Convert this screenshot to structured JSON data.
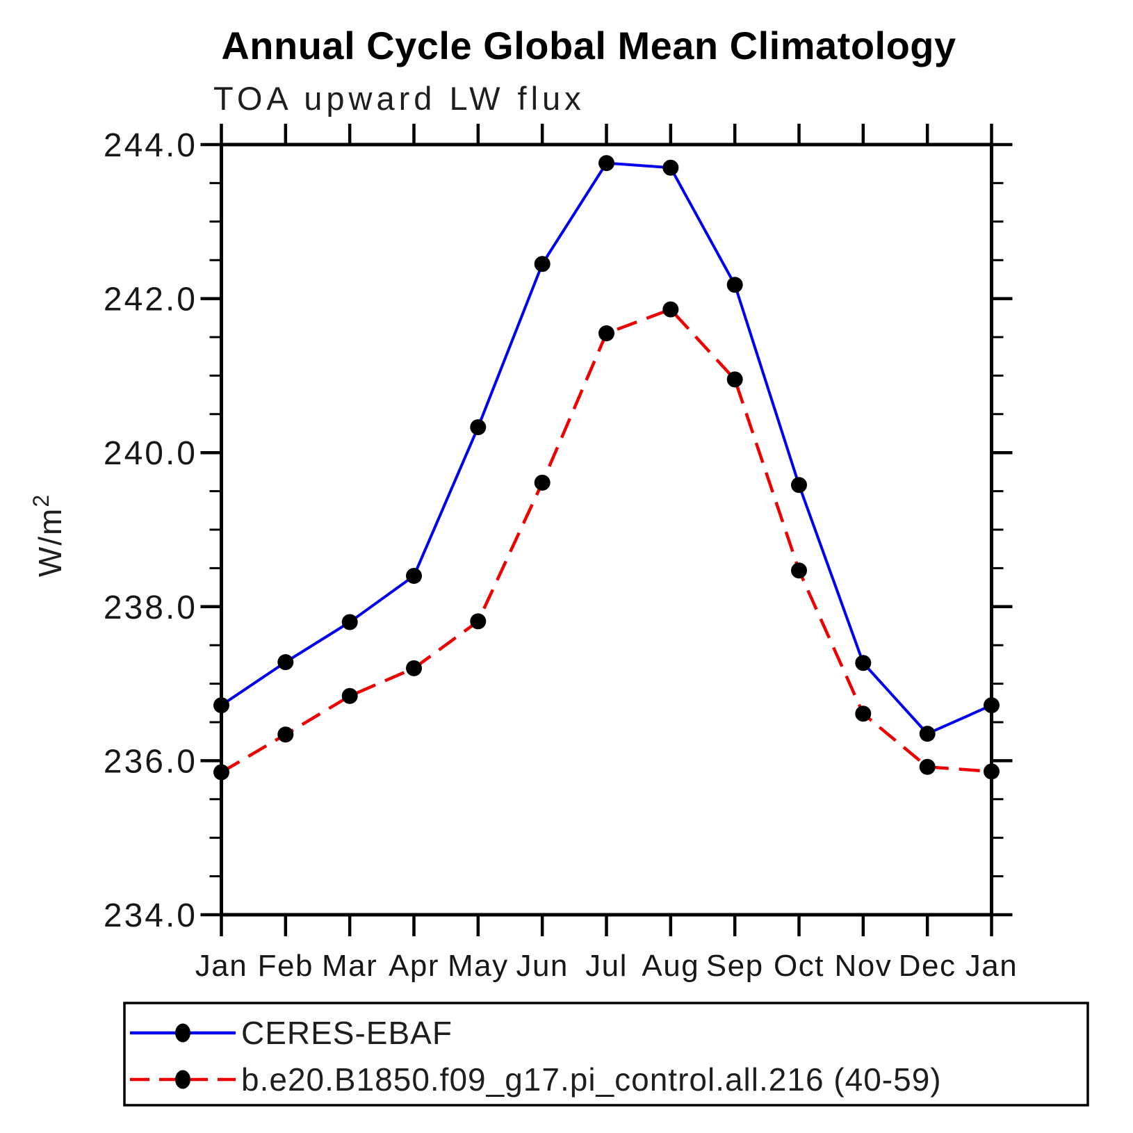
{
  "figure": {
    "title": "Annual Cycle Global Mean Climatology",
    "subtitle": "TOA upward LW flux"
  },
  "chart_data": {
    "type": "line",
    "title": "Annual Cycle Global Mean Climatology",
    "subtitle": "TOA upward LW flux",
    "ylabel": "W/m²",
    "ylabel_display": {
      "base": "W/m",
      "sup": "2"
    },
    "categories": [
      "Jan",
      "Feb",
      "Mar",
      "Apr",
      "May",
      "Jun",
      "Jul",
      "Aug",
      "Sep",
      "Oct",
      "Nov",
      "Dec",
      "Jan"
    ],
    "ylim": [
      234.0,
      244.0
    ],
    "ytick_major": 2.0,
    "ytick_minor": 0.5,
    "ytick_labels": [
      "234.0",
      "236.0",
      "238.0",
      "240.0",
      "242.0",
      "244.0"
    ],
    "grid": false,
    "legend_position": "bottom",
    "marker": {
      "shape": "circle",
      "color": "#000000"
    },
    "series": [
      {
        "name": "CERES-EBAF",
        "color": "#0000ee",
        "line_style": "solid",
        "values": [
          236.72,
          237.28,
          237.8,
          238.4,
          240.33,
          242.45,
          243.76,
          243.7,
          242.18,
          239.58,
          237.27,
          236.35,
          236.72
        ]
      },
      {
        "name": "b.e20.B1850.f09_g17.pi_control.all.216 (40-59)",
        "color": "#ee0000",
        "line_style": "dashed",
        "values": [
          235.85,
          236.34,
          236.84,
          237.2,
          237.81,
          239.61,
          241.55,
          241.86,
          240.95,
          238.47,
          236.61,
          235.92,
          235.86
        ]
      }
    ]
  }
}
